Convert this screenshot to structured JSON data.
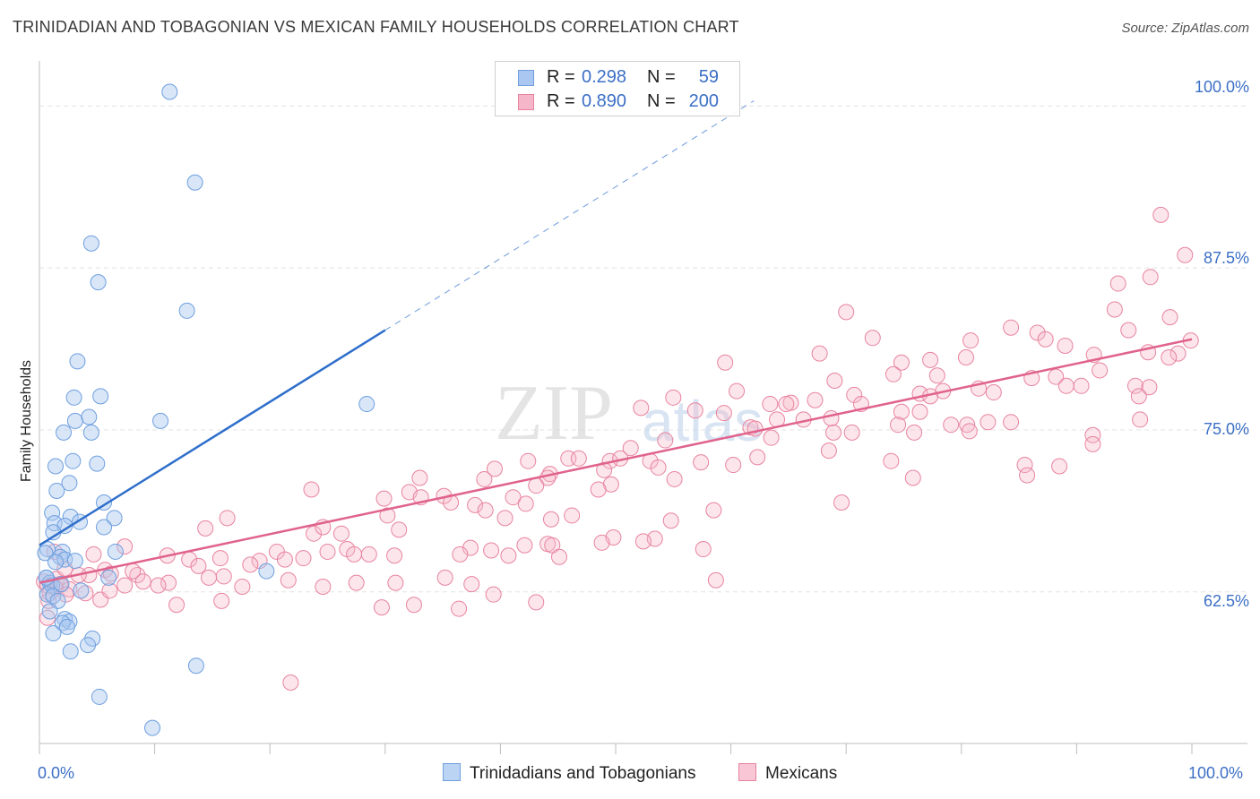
{
  "header": {
    "title": "TRINIDADIAN AND TOBAGONIAN VS MEXICAN FAMILY HOUSEHOLDS CORRELATION CHART",
    "source": "Source: ZipAtlas.com"
  },
  "stats_box": {
    "rows": [
      {
        "r_label": "R =",
        "r_value": "0.298",
        "n_label": "N =",
        "n_value": "59"
      },
      {
        "r_label": "R =",
        "r_value": "0.890",
        "n_label": "N =",
        "n_value": "200"
      }
    ]
  },
  "legend": {
    "series_a": "Trinidadians and Tobagonians",
    "series_b": "Mexicans"
  },
  "axis": {
    "x_min_label": "0.0%",
    "x_max_label": "100.0%",
    "y_ticks": [
      "100.0%",
      "87.5%",
      "75.0%",
      "62.5%"
    ]
  },
  "watermark": {
    "zip": "ZIP",
    "atlas": "atlas"
  },
  "colors": {
    "blue_fill": "#a9c7f0",
    "blue_stroke": "#6e9fdf",
    "blue_line": "#2f6fcb",
    "pink_fill": "#f6b6c9",
    "pink_stroke": "#e8839f",
    "pink_line": "#e0638d",
    "grid": "#e3e3e3",
    "tick_text": "#3b6fc6"
  },
  "chart_data": {
    "type": "scatter",
    "title": "TRINIDADIAN AND TOBAGONIAN VS MEXICAN FAMILY HOUSEHOLDS CORRELATION CHART",
    "xlabel": "",
    "ylabel": "Family Households",
    "xlim": [
      0,
      100
    ],
    "ylim": [
      50.8,
      103.0
    ],
    "y_gridlines": [
      100.0,
      87.5,
      75.0,
      62.5
    ],
    "series": [
      {
        "name": "Trinidadians and Tobagonians",
        "r": 0.298,
        "n": 59,
        "trend": {
          "x0": 0,
          "y0": 66.1,
          "x1": 30,
          "y1": 82.7,
          "dashed_to_x": 62
        },
        "points": [
          [
            11.3,
            101.1
          ],
          [
            13.5,
            94.1
          ],
          [
            4.5,
            89.4
          ],
          [
            5.1,
            86.4
          ],
          [
            12.8,
            84.2
          ],
          [
            3.3,
            80.3
          ],
          [
            5.3,
            77.6
          ],
          [
            3.0,
            77.5
          ],
          [
            28.4,
            77.0
          ],
          [
            4.3,
            76.0
          ],
          [
            10.5,
            75.7
          ],
          [
            3.1,
            75.7
          ],
          [
            2.1,
            74.8
          ],
          [
            4.5,
            74.8
          ],
          [
            2.9,
            72.6
          ],
          [
            5.0,
            72.4
          ],
          [
            1.4,
            72.2
          ],
          [
            2.6,
            70.9
          ],
          [
            1.5,
            70.3
          ],
          [
            5.6,
            69.4
          ],
          [
            1.1,
            68.6
          ],
          [
            2.7,
            68.3
          ],
          [
            6.5,
            68.2
          ],
          [
            3.5,
            67.9
          ],
          [
            1.3,
            67.8
          ],
          [
            2.2,
            67.6
          ],
          [
            5.6,
            67.5
          ],
          [
            1.2,
            67.1
          ],
          [
            0.7,
            65.8
          ],
          [
            0.5,
            65.5
          ],
          [
            2.0,
            65.6
          ],
          [
            6.6,
            65.6
          ],
          [
            1.8,
            65.2
          ],
          [
            2.2,
            65.0
          ],
          [
            3.1,
            64.9
          ],
          [
            1.4,
            64.8
          ],
          [
            19.7,
            64.1
          ],
          [
            0.6,
            63.6
          ],
          [
            6.0,
            63.6
          ],
          [
            0.9,
            63.2
          ],
          [
            1.1,
            63.0
          ],
          [
            0.7,
            62.3
          ],
          [
            1.2,
            62.2
          ],
          [
            3.6,
            62.6
          ],
          [
            1.6,
            61.8
          ],
          [
            0.9,
            61.0
          ],
          [
            2.2,
            60.4
          ],
          [
            2.6,
            60.2
          ],
          [
            2.0,
            60.1
          ],
          [
            2.4,
            59.8
          ],
          [
            1.2,
            59.3
          ],
          [
            4.6,
            58.9
          ],
          [
            4.2,
            58.4
          ],
          [
            2.7,
            57.9
          ],
          [
            13.6,
            56.8
          ],
          [
            5.2,
            54.4
          ],
          [
            9.8,
            52.0
          ],
          [
            0.6,
            63.6
          ],
          [
            1.9,
            63.1
          ]
        ]
      },
      {
        "name": "Mexicans",
        "r": 0.89,
        "n": 200,
        "trend": {
          "x0": 0,
          "y0": 63.2,
          "x1": 100,
          "y1": 82.0
        },
        "points": [
          [
            97.3,
            91.6
          ],
          [
            99.4,
            88.5
          ],
          [
            96.4,
            86.8
          ],
          [
            93.6,
            86.3
          ],
          [
            93.3,
            84.3
          ],
          [
            98.1,
            83.7
          ],
          [
            70.0,
            84.1
          ],
          [
            84.3,
            82.9
          ],
          [
            94.5,
            82.7
          ],
          [
            86.6,
            82.5
          ],
          [
            72.3,
            82.1
          ],
          [
            87.3,
            82.0
          ],
          [
            80.8,
            81.9
          ],
          [
            99.9,
            81.9
          ],
          [
            89.0,
            81.5
          ],
          [
            96.2,
            81.0
          ],
          [
            98.8,
            80.9
          ],
          [
            67.7,
            80.9
          ],
          [
            91.5,
            80.8
          ],
          [
            98.0,
            80.6
          ],
          [
            80.4,
            80.6
          ],
          [
            74.8,
            80.2
          ],
          [
            77.3,
            80.4
          ],
          [
            59.5,
            80.2
          ],
          [
            92.0,
            79.6
          ],
          [
            88.2,
            79.1
          ],
          [
            77.9,
            79.2
          ],
          [
            74.1,
            79.3
          ],
          [
            86.1,
            79.0
          ],
          [
            69.0,
            78.8
          ],
          [
            90.4,
            78.4
          ],
          [
            95.1,
            78.4
          ],
          [
            96.3,
            78.3
          ],
          [
            60.5,
            78.0
          ],
          [
            81.5,
            78.2
          ],
          [
            78.4,
            78.0
          ],
          [
            89.1,
            78.4
          ],
          [
            82.8,
            77.9
          ],
          [
            76.4,
            77.8
          ],
          [
            70.7,
            77.7
          ],
          [
            95.4,
            77.6
          ],
          [
            55.0,
            77.5
          ],
          [
            77.3,
            77.6
          ],
          [
            67.3,
            77.3
          ],
          [
            65.2,
            77.1
          ],
          [
            71.3,
            77.0
          ],
          [
            64.8,
            77.0
          ],
          [
            63.4,
            77.0
          ],
          [
            52.2,
            76.7
          ],
          [
            56.9,
            76.5
          ],
          [
            59.4,
            76.3
          ],
          [
            74.8,
            76.4
          ],
          [
            76.4,
            76.4
          ],
          [
            64.0,
            75.8
          ],
          [
            68.7,
            75.9
          ],
          [
            95.5,
            75.8
          ],
          [
            84.3,
            75.6
          ],
          [
            66.3,
            75.8
          ],
          [
            82.3,
            75.6
          ],
          [
            80.5,
            75.4
          ],
          [
            74.5,
            75.4
          ],
          [
            61.7,
            75.2
          ],
          [
            62.1,
            75.1
          ],
          [
            79.1,
            75.4
          ],
          [
            80.7,
            74.9
          ],
          [
            75.9,
            74.8
          ],
          [
            68.9,
            74.8
          ],
          [
            91.4,
            74.6
          ],
          [
            63.5,
            74.4
          ],
          [
            70.5,
            74.8
          ],
          [
            91.4,
            73.9
          ],
          [
            54.3,
            74.2
          ],
          [
            68.5,
            73.4
          ],
          [
            51.3,
            73.6
          ],
          [
            73.9,
            72.6
          ],
          [
            62.3,
            72.9
          ],
          [
            45.9,
            72.8
          ],
          [
            53.0,
            72.6
          ],
          [
            57.4,
            72.5
          ],
          [
            42.4,
            72.6
          ],
          [
            46.8,
            72.8
          ],
          [
            49.5,
            72.6
          ],
          [
            50.4,
            72.8
          ],
          [
            53.7,
            72.1
          ],
          [
            60.2,
            72.3
          ],
          [
            85.5,
            72.3
          ],
          [
            88.5,
            72.2
          ],
          [
            49.0,
            71.9
          ],
          [
            39.5,
            72.0
          ],
          [
            44.3,
            71.6
          ],
          [
            44.1,
            71.3
          ],
          [
            55.1,
            71.2
          ],
          [
            33.0,
            71.3
          ],
          [
            38.6,
            71.2
          ],
          [
            49.6,
            70.8
          ],
          [
            75.8,
            71.3
          ],
          [
            85.7,
            71.5
          ],
          [
            43.1,
            70.7
          ],
          [
            48.5,
            70.4
          ],
          [
            32.1,
            70.2
          ],
          [
            29.9,
            69.7
          ],
          [
            33.1,
            69.8
          ],
          [
            23.6,
            70.4
          ],
          [
            35.1,
            69.9
          ],
          [
            41.1,
            69.8
          ],
          [
            42.2,
            69.3
          ],
          [
            35.7,
            69.4
          ],
          [
            37.8,
            69.2
          ],
          [
            38.7,
            68.8
          ],
          [
            16.3,
            68.2
          ],
          [
            46.2,
            68.4
          ],
          [
            44.4,
            68.1
          ],
          [
            30.2,
            68.4
          ],
          [
            58.5,
            68.8
          ],
          [
            40.4,
            68.2
          ],
          [
            54.8,
            68.0
          ],
          [
            31.2,
            67.3
          ],
          [
            23.8,
            67.0
          ],
          [
            26.2,
            67.0
          ],
          [
            14.4,
            67.4
          ],
          [
            24.6,
            67.5
          ],
          [
            49.8,
            66.7
          ],
          [
            53.4,
            66.6
          ],
          [
            52.4,
            66.4
          ],
          [
            48.8,
            66.3
          ],
          [
            44.1,
            66.2
          ],
          [
            42.1,
            66.1
          ],
          [
            44.5,
            66.1
          ],
          [
            37.4,
            65.9
          ],
          [
            39.2,
            65.7
          ],
          [
            57.6,
            65.8
          ],
          [
            20.6,
            65.6
          ],
          [
            26.7,
            65.8
          ],
          [
            27.3,
            65.4
          ],
          [
            28.6,
            65.4
          ],
          [
            30.8,
            65.3
          ],
          [
            25.0,
            65.6
          ],
          [
            36.5,
            65.4
          ],
          [
            40.7,
            65.3
          ],
          [
            45.1,
            65.2
          ],
          [
            11.1,
            65.3
          ],
          [
            13.0,
            65.0
          ],
          [
            22.9,
            65.1
          ],
          [
            21.3,
            65.0
          ],
          [
            19.1,
            64.9
          ],
          [
            15.7,
            65.1
          ],
          [
            18.3,
            64.6
          ],
          [
            13.8,
            64.5
          ],
          [
            16.0,
            63.7
          ],
          [
            14.7,
            63.6
          ],
          [
            21.6,
            63.4
          ],
          [
            8.5,
            63.8
          ],
          [
            8.1,
            64.1
          ],
          [
            5.7,
            64.2
          ],
          [
            6.2,
            63.9
          ],
          [
            4.3,
            63.8
          ],
          [
            1.5,
            63.5
          ],
          [
            1.8,
            63.1
          ],
          [
            7.4,
            63.0
          ],
          [
            9.0,
            63.3
          ],
          [
            11.2,
            63.2
          ],
          [
            10.3,
            63.0
          ],
          [
            0.4,
            63.3
          ],
          [
            0.7,
            63.0
          ],
          [
            1.4,
            62.8
          ],
          [
            2.6,
            62.7
          ],
          [
            4.0,
            62.4
          ],
          [
            2.3,
            62.3
          ],
          [
            0.9,
            62.4
          ],
          [
            5.3,
            61.9
          ],
          [
            0.8,
            61.8
          ],
          [
            11.9,
            61.5
          ],
          [
            15.8,
            61.8
          ],
          [
            27.5,
            63.2
          ],
          [
            24.6,
            62.9
          ],
          [
            32.5,
            61.5
          ],
          [
            29.7,
            61.3
          ],
          [
            37.5,
            63.1
          ],
          [
            39.4,
            62.3
          ],
          [
            36.4,
            61.2
          ],
          [
            43.1,
            61.7
          ],
          [
            58.7,
            63.4
          ],
          [
            30.9,
            63.2
          ],
          [
            35.2,
            63.6
          ],
          [
            17.6,
            62.9
          ],
          [
            21.8,
            55.5
          ],
          [
            0.7,
            60.5
          ],
          [
            4.7,
            65.4
          ],
          [
            7.4,
            66.0
          ],
          [
            69.6,
            69.4
          ],
          [
            1.3,
            65.6
          ],
          [
            2.2,
            64.3
          ],
          [
            3.4,
            63.8
          ],
          [
            6.1,
            62.6
          ]
        ]
      }
    ]
  }
}
